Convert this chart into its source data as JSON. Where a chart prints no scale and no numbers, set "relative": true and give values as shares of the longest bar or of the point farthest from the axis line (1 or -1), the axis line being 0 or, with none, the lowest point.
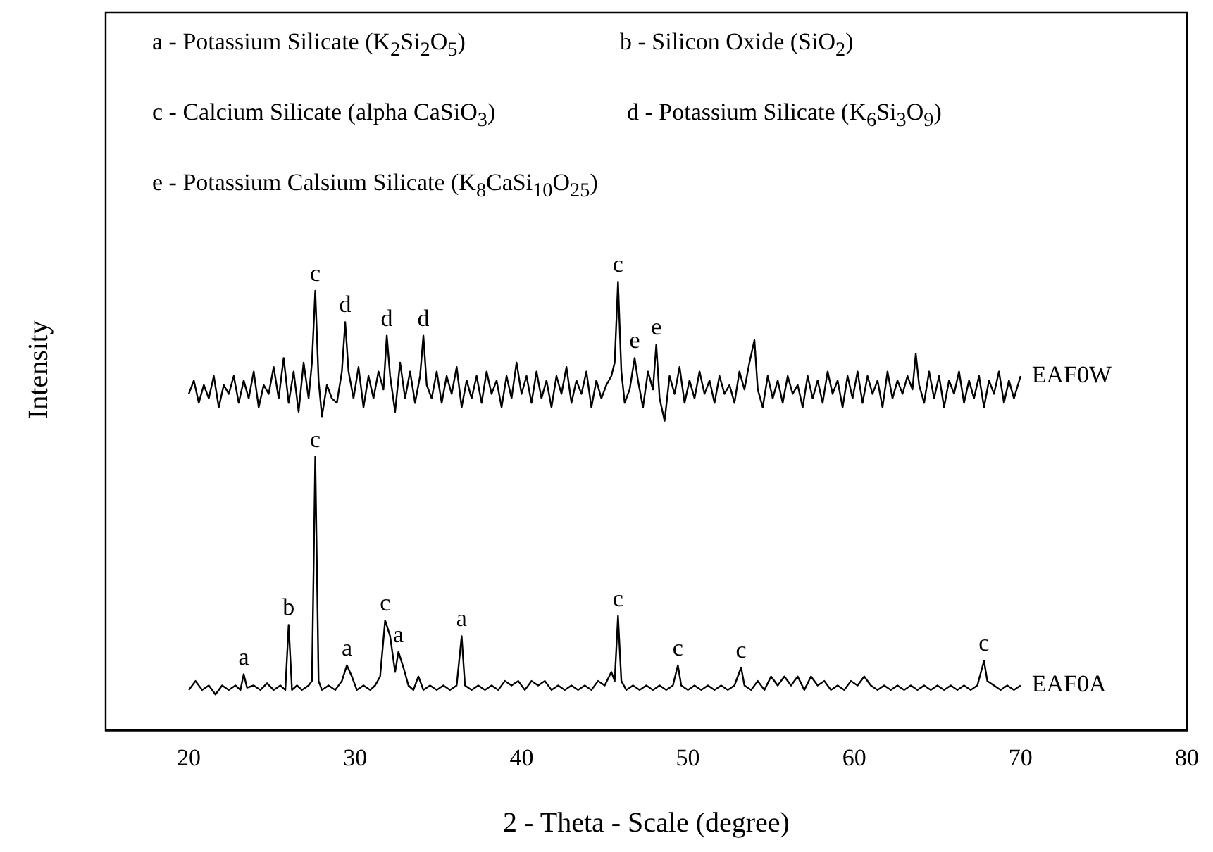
{
  "chart_data": {
    "type": "line",
    "relative": true,
    "xlabel": "2 - Theta - Scale (degree)",
    "ylabel": "Intensity",
    "xlim": [
      15,
      80
    ],
    "xticks": [
      20,
      30,
      40,
      50,
      60,
      70,
      80
    ],
    "tick_labels": "x",
    "grid": false,
    "legend": false,
    "marker": "none",
    "line_style": "solid",
    "series": [
      {
        "name": "EAF0W",
        "color": "#000000",
        "x": [
          20.0,
          20.3,
          20.6,
          20.9,
          21.2,
          21.5,
          21.8,
          22.1,
          22.4,
          22.7,
          23.0,
          23.3,
          23.6,
          23.9,
          24.2,
          24.5,
          24.8,
          25.1,
          25.4,
          25.7,
          26.0,
          26.3,
          26.6,
          26.9,
          27.2,
          27.4,
          27.6,
          27.8,
          28.0,
          28.3,
          28.6,
          28.9,
          29.2,
          29.4,
          29.6,
          29.9,
          30.2,
          30.5,
          30.8,
          31.1,
          31.4,
          31.7,
          31.9,
          32.1,
          32.4,
          32.7,
          33.0,
          33.3,
          33.6,
          33.9,
          34.1,
          34.3,
          34.6,
          34.9,
          35.2,
          35.5,
          35.8,
          36.1,
          36.4,
          36.7,
          37.0,
          37.3,
          37.6,
          37.9,
          38.2,
          38.5,
          38.8,
          39.1,
          39.4,
          39.7,
          40.0,
          40.3,
          40.6,
          40.9,
          41.2,
          41.5,
          41.8,
          42.1,
          42.4,
          42.7,
          43.0,
          43.3,
          43.6,
          43.9,
          44.2,
          44.5,
          44.8,
          45.1,
          45.4,
          45.6,
          45.8,
          46.0,
          46.2,
          46.5,
          46.8,
          47.0,
          47.3,
          47.6,
          47.9,
          48.1,
          48.3,
          48.6,
          48.9,
          49.2,
          49.5,
          49.8,
          50.1,
          50.4,
          50.7,
          51.0,
          51.3,
          51.6,
          51.9,
          52.2,
          52.5,
          52.8,
          53.1,
          53.4,
          53.7,
          54.0,
          54.2,
          54.5,
          54.8,
          55.1,
          55.4,
          55.7,
          56.0,
          56.3,
          56.6,
          56.9,
          57.2,
          57.5,
          57.8,
          58.1,
          58.4,
          58.7,
          59.0,
          59.3,
          59.6,
          59.9,
          60.2,
          60.5,
          60.8,
          61.1,
          61.4,
          61.7,
          62.0,
          62.3,
          62.6,
          62.9,
          63.2,
          63.5,
          63.7,
          63.9,
          64.2,
          64.5,
          64.8,
          65.1,
          65.4,
          65.7,
          66.0,
          66.3,
          66.6,
          66.9,
          67.2,
          67.5,
          67.8,
          68.1,
          68.4,
          68.7,
          69.0,
          69.3,
          69.6,
          70.0
        ],
        "values": [
          0.75,
          0.78,
          0.73,
          0.77,
          0.74,
          0.79,
          0.72,
          0.77,
          0.75,
          0.79,
          0.73,
          0.78,
          0.74,
          0.8,
          0.72,
          0.77,
          0.75,
          0.81,
          0.74,
          0.83,
          0.73,
          0.8,
          0.71,
          0.82,
          0.74,
          0.82,
          0.98,
          0.78,
          0.7,
          0.77,
          0.74,
          0.73,
          0.8,
          0.91,
          0.8,
          0.74,
          0.81,
          0.72,
          0.79,
          0.74,
          0.8,
          0.76,
          0.88,
          0.79,
          0.71,
          0.82,
          0.74,
          0.8,
          0.73,
          0.79,
          0.88,
          0.77,
          0.74,
          0.8,
          0.73,
          0.79,
          0.75,
          0.81,
          0.72,
          0.78,
          0.74,
          0.79,
          0.73,
          0.8,
          0.75,
          0.78,
          0.72,
          0.79,
          0.74,
          0.82,
          0.75,
          0.79,
          0.73,
          0.8,
          0.74,
          0.78,
          0.72,
          0.79,
          0.75,
          0.81,
          0.73,
          0.78,
          0.75,
          0.8,
          0.72,
          0.78,
          0.74,
          0.77,
          0.79,
          0.82,
          1.0,
          0.8,
          0.73,
          0.76,
          0.83,
          0.78,
          0.72,
          0.8,
          0.76,
          0.86,
          0.74,
          0.69,
          0.79,
          0.75,
          0.81,
          0.73,
          0.78,
          0.74,
          0.8,
          0.75,
          0.78,
          0.73,
          0.79,
          0.75,
          0.77,
          0.73,
          0.8,
          0.76,
          0.82,
          0.87,
          0.76,
          0.72,
          0.79,
          0.74,
          0.78,
          0.73,
          0.79,
          0.75,
          0.77,
          0.72,
          0.79,
          0.74,
          0.78,
          0.73,
          0.8,
          0.75,
          0.78,
          0.72,
          0.79,
          0.74,
          0.8,
          0.73,
          0.79,
          0.75,
          0.78,
          0.72,
          0.8,
          0.74,
          0.78,
          0.75,
          0.79,
          0.76,
          0.84,
          0.77,
          0.73,
          0.8,
          0.74,
          0.79,
          0.72,
          0.78,
          0.75,
          0.8,
          0.73,
          0.78,
          0.74,
          0.79,
          0.72,
          0.78,
          0.75,
          0.8,
          0.73,
          0.78,
          0.74,
          0.79
        ]
      },
      {
        "name": "EAF0A",
        "color": "#000000",
        "x": [
          20.0,
          20.4,
          20.8,
          21.2,
          21.6,
          22.0,
          22.4,
          22.8,
          23.1,
          23.3,
          23.5,
          23.9,
          24.3,
          24.7,
          25.1,
          25.5,
          25.8,
          26.0,
          26.2,
          26.5,
          26.8,
          27.2,
          27.4,
          27.6,
          27.8,
          28.0,
          28.4,
          28.8,
          29.2,
          29.5,
          29.8,
          30.1,
          30.5,
          30.9,
          31.2,
          31.5,
          31.8,
          32.1,
          32.4,
          32.6,
          32.9,
          33.2,
          33.5,
          33.8,
          34.1,
          34.5,
          34.9,
          35.3,
          35.7,
          36.1,
          36.4,
          36.6,
          37.0,
          37.4,
          37.8,
          38.2,
          38.6,
          39.0,
          39.4,
          39.8,
          40.2,
          40.6,
          41.0,
          41.4,
          41.8,
          42.2,
          42.6,
          43.0,
          43.4,
          43.8,
          44.2,
          44.6,
          45.0,
          45.4,
          45.6,
          45.8,
          46.0,
          46.3,
          46.7,
          47.1,
          47.5,
          47.9,
          48.3,
          48.7,
          49.1,
          49.4,
          49.6,
          50.0,
          50.4,
          50.8,
          51.2,
          51.6,
          52.0,
          52.4,
          52.8,
          53.2,
          53.4,
          53.8,
          54.2,
          54.6,
          55.0,
          55.4,
          55.8,
          56.2,
          56.6,
          57.0,
          57.4,
          57.8,
          58.2,
          58.6,
          59.0,
          59.4,
          59.8,
          60.2,
          60.6,
          61.0,
          61.4,
          61.8,
          62.2,
          62.6,
          63.0,
          63.4,
          63.8,
          64.2,
          64.6,
          65.0,
          65.4,
          65.8,
          66.2,
          66.6,
          67.0,
          67.4,
          67.8,
          68.0,
          68.4,
          68.8,
          69.2,
          69.6,
          70.0
        ],
        "values": [
          0.09,
          0.11,
          0.09,
          0.1,
          0.08,
          0.1,
          0.09,
          0.1,
          0.09,
          0.125,
          0.095,
          0.1,
          0.09,
          0.105,
          0.09,
          0.1,
          0.09,
          0.235,
          0.09,
          0.1,
          0.09,
          0.1,
          0.11,
          0.61,
          0.11,
          0.09,
          0.1,
          0.09,
          0.11,
          0.145,
          0.12,
          0.09,
          0.1,
          0.09,
          0.1,
          0.12,
          0.245,
          0.21,
          0.13,
          0.175,
          0.14,
          0.1,
          0.09,
          0.12,
          0.09,
          0.1,
          0.09,
          0.1,
          0.09,
          0.1,
          0.21,
          0.1,
          0.09,
          0.1,
          0.09,
          0.1,
          0.09,
          0.11,
          0.1,
          0.11,
          0.09,
          0.11,
          0.1,
          0.11,
          0.09,
          0.1,
          0.09,
          0.1,
          0.09,
          0.1,
          0.09,
          0.11,
          0.1,
          0.13,
          0.11,
          0.255,
          0.11,
          0.09,
          0.1,
          0.09,
          0.1,
          0.09,
          0.1,
          0.09,
          0.1,
          0.145,
          0.1,
          0.09,
          0.1,
          0.09,
          0.1,
          0.09,
          0.1,
          0.09,
          0.1,
          0.14,
          0.1,
          0.09,
          0.11,
          0.09,
          0.12,
          0.1,
          0.12,
          0.1,
          0.12,
          0.09,
          0.12,
          0.1,
          0.11,
          0.09,
          0.1,
          0.09,
          0.11,
          0.1,
          0.12,
          0.1,
          0.09,
          0.1,
          0.09,
          0.1,
          0.09,
          0.1,
          0.09,
          0.1,
          0.09,
          0.1,
          0.09,
          0.1,
          0.09,
          0.1,
          0.09,
          0.1,
          0.155,
          0.11,
          0.1,
          0.09,
          0.1,
          0.09,
          0.1
        ]
      }
    ],
    "annotations": [
      "a - Potassium Silicate (K$_{2}$Si$_{2}$O$_{5}$)",
      "b - Silicon Oxide (SiO$_{2}$)",
      "c - Calcium Silicate (alpha CaSiO$_{3}$)",
      "d - Potassium Silicate (K$_{6}$Si$_{3}$O$_{9}$)",
      "e - Potassium Calsium Silicate (K$_{8}$CaSi$_{10}$O$_{25}$)",
      {
        "text": "c",
        "x": 27.6,
        "y": 0.98
      },
      {
        "text": "d",
        "x": 29.4,
        "y": 0.91
      },
      {
        "text": "d",
        "x": 31.9,
        "y": 0.88
      },
      {
        "text": "d",
        "x": 34.1,
        "y": 0.88
      },
      {
        "text": "c",
        "x": 45.8,
        "y": 1.0
      },
      {
        "text": "e",
        "x": 46.8,
        "y": 0.83
      },
      {
        "text": "e",
        "x": 48.1,
        "y": 0.86
      },
      {
        "text": "a",
        "x": 23.3,
        "y": 0.125
      },
      {
        "text": "b",
        "x": 26.0,
        "y": 0.235
      },
      {
        "text": "c",
        "x": 27.6,
        "y": 0.61
      },
      {
        "text": "a",
        "x": 29.5,
        "y": 0.145
      },
      {
        "text": "c",
        "x": 31.8,
        "y": 0.245
      },
      {
        "text": "a",
        "x": 32.6,
        "y": 0.175
      },
      {
        "text": "a",
        "x": 36.4,
        "y": 0.21
      },
      {
        "text": "c",
        "x": 45.8,
        "y": 0.255
      },
      {
        "text": "c",
        "x": 49.4,
        "y": 0.145
      },
      {
        "text": "c",
        "x": 53.2,
        "y": 0.14
      },
      {
        "text": "c",
        "x": 67.8,
        "y": 0.155
      }
    ]
  }
}
